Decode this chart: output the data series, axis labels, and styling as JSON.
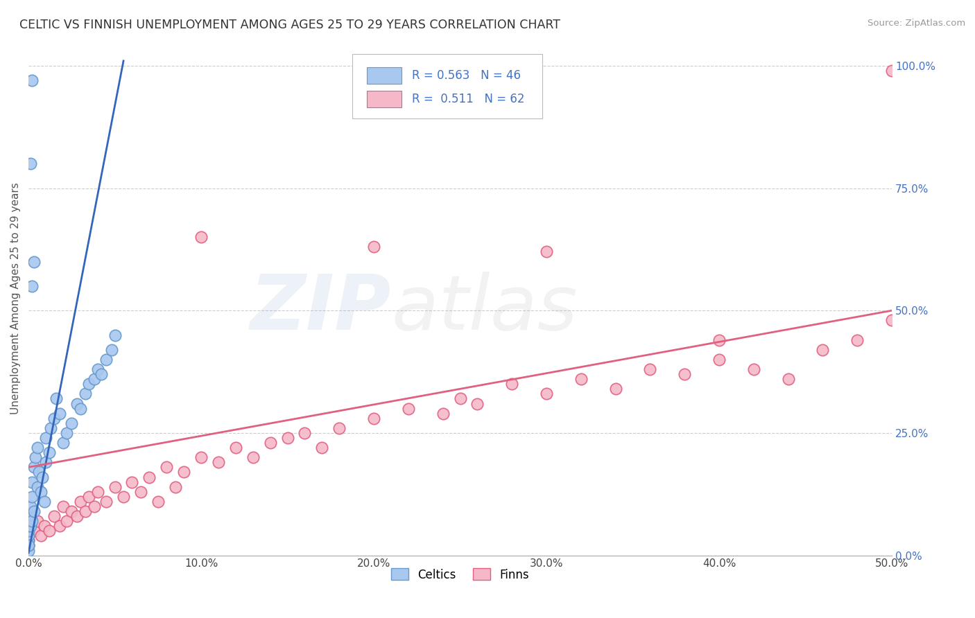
{
  "title": "CELTIC VS FINNISH UNEMPLOYMENT AMONG AGES 25 TO 29 YEARS CORRELATION CHART",
  "source": "Source: ZipAtlas.com",
  "ylabel": "Unemployment Among Ages 25 to 29 years",
  "xlim": [
    0.0,
    0.5
  ],
  "ylim": [
    0.0,
    1.05
  ],
  "xticks": [
    0.0,
    0.1,
    0.2,
    0.3,
    0.4,
    0.5
  ],
  "xticklabels": [
    "0.0%",
    "10.0%",
    "20.0%",
    "30.0%",
    "40.0%",
    "50.0%"
  ],
  "yticks_right": [
    0.0,
    0.25,
    0.5,
    0.75,
    1.0
  ],
  "yticklabels_right": [
    "0.0%",
    "25.0%",
    "50.0%",
    "75.0%",
    "100.0%"
  ],
  "celtic_color": "#A8C8F0",
  "celtic_color_edge": "#6699CC",
  "finn_color": "#F5B8C8",
  "finn_color_edge": "#E06080",
  "legend_color": "#4472C4",
  "celtic_R": 0.563,
  "celtic_N": 46,
  "finn_R": 0.511,
  "finn_N": 62,
  "celtic_x": [
    0.0,
    0.0,
    0.0,
    0.0,
    0.0,
    0.0,
    0.0,
    0.001,
    0.001,
    0.001,
    0.002,
    0.002,
    0.002,
    0.003,
    0.003,
    0.004,
    0.005,
    0.005,
    0.006,
    0.007,
    0.008,
    0.009,
    0.01,
    0.01,
    0.012,
    0.013,
    0.015,
    0.016,
    0.018,
    0.02,
    0.022,
    0.025,
    0.028,
    0.03,
    0.033,
    0.035,
    0.038,
    0.04,
    0.042,
    0.045,
    0.048,
    0.05,
    0.002,
    0.003,
    0.001,
    0.002
  ],
  "celtic_y": [
    0.01,
    0.02,
    0.03,
    0.04,
    0.05,
    0.06,
    0.02,
    0.08,
    0.1,
    0.06,
    0.12,
    0.15,
    0.07,
    0.18,
    0.09,
    0.2,
    0.22,
    0.14,
    0.17,
    0.13,
    0.16,
    0.11,
    0.19,
    0.24,
    0.21,
    0.26,
    0.28,
    0.32,
    0.29,
    0.23,
    0.25,
    0.27,
    0.31,
    0.3,
    0.33,
    0.35,
    0.36,
    0.38,
    0.37,
    0.4,
    0.42,
    0.45,
    0.55,
    0.6,
    0.8,
    0.97
  ],
  "finn_x": [
    0.0,
    0.0,
    0.0,
    0.0,
    0.0,
    0.003,
    0.005,
    0.007,
    0.009,
    0.012,
    0.015,
    0.018,
    0.02,
    0.022,
    0.025,
    0.028,
    0.03,
    0.033,
    0.035,
    0.038,
    0.04,
    0.045,
    0.05,
    0.055,
    0.06,
    0.065,
    0.07,
    0.075,
    0.08,
    0.085,
    0.09,
    0.1,
    0.11,
    0.12,
    0.13,
    0.14,
    0.15,
    0.16,
    0.17,
    0.18,
    0.2,
    0.22,
    0.24,
    0.25,
    0.26,
    0.28,
    0.3,
    0.32,
    0.34,
    0.36,
    0.38,
    0.4,
    0.42,
    0.44,
    0.46,
    0.48,
    0.5,
    0.1,
    0.2,
    0.3,
    0.4,
    0.5
  ],
  "finn_y": [
    0.02,
    0.04,
    0.06,
    0.08,
    0.03,
    0.05,
    0.07,
    0.04,
    0.06,
    0.05,
    0.08,
    0.06,
    0.1,
    0.07,
    0.09,
    0.08,
    0.11,
    0.09,
    0.12,
    0.1,
    0.13,
    0.11,
    0.14,
    0.12,
    0.15,
    0.13,
    0.16,
    0.11,
    0.18,
    0.14,
    0.17,
    0.2,
    0.19,
    0.22,
    0.2,
    0.23,
    0.24,
    0.25,
    0.22,
    0.26,
    0.28,
    0.3,
    0.29,
    0.32,
    0.31,
    0.35,
    0.33,
    0.36,
    0.34,
    0.38,
    0.37,
    0.4,
    0.38,
    0.36,
    0.42,
    0.44,
    0.48,
    0.65,
    0.63,
    0.62,
    0.44,
    0.99
  ],
  "blue_line_x": [
    0.0,
    0.055
  ],
  "blue_line_y": [
    0.005,
    1.01
  ],
  "pink_line_x": [
    0.0,
    0.5
  ],
  "pink_line_y": [
    0.18,
    0.5
  ]
}
